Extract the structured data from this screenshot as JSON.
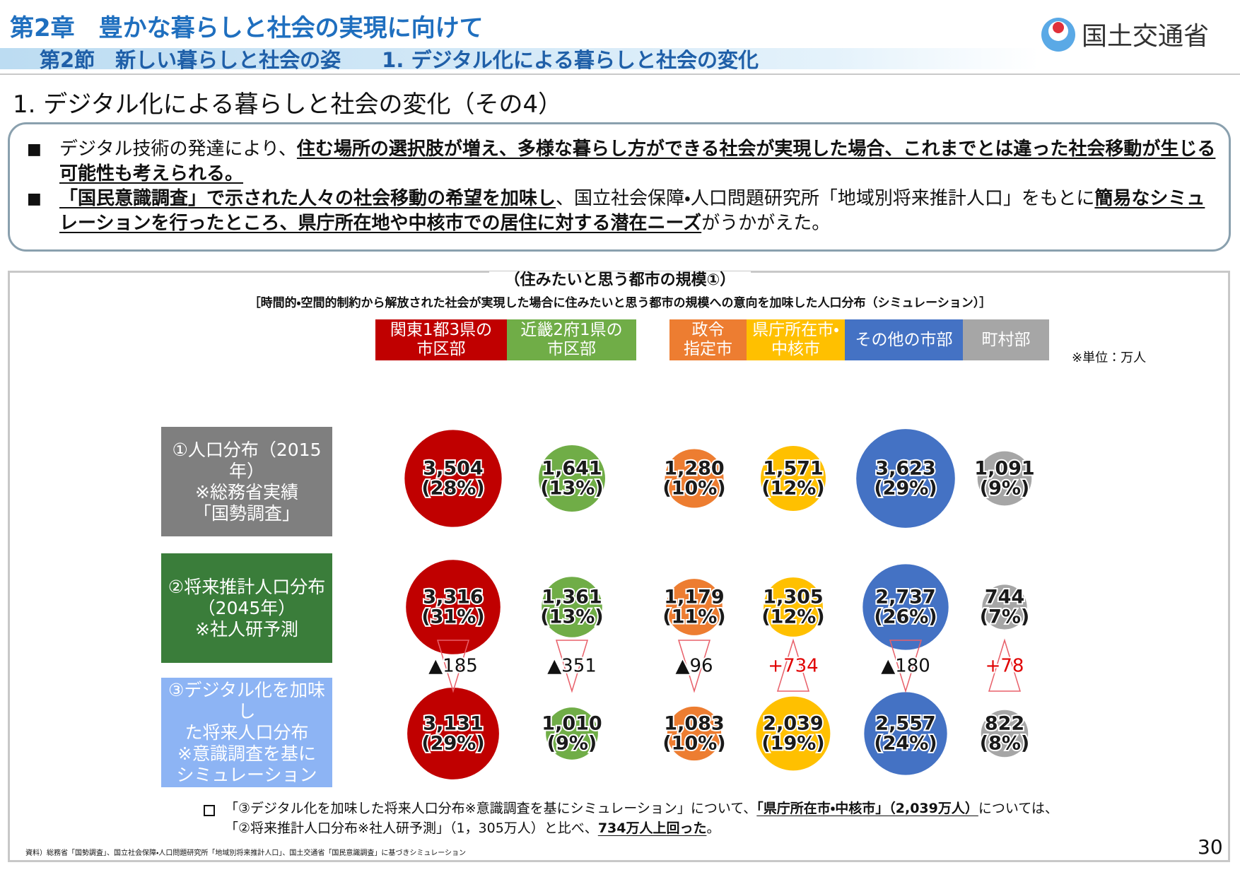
{
  "header": {
    "title": "第2章　豊かな暮らしと社会の実現に向けて",
    "subtitle": "第2節　新しい暮らしと社会の姿　　1. デジタル化による暮らしと社会の変化",
    "logo": "国土交通省",
    "heading": "1. デジタル化による暮らしと社会の変化（その4）"
  },
  "box": {
    "bullets": [
      [
        {
          "text": "デジタル技術の発達により、",
          "emphasis": false
        },
        {
          "text": "住む場所の選択肢が増え、多様な暮らし方ができる社会が実現した場合、これまでとは違った社会移動が生じる可能性も考えられる。",
          "emphasis": true
        }
      ],
      [
        {
          "text": "「国民意識調査」で示された人々の社会移動の希望を加味し",
          "emphasis": true
        },
        {
          "text": "、国立社会保障・人口問題研究所「地域別将来推計人口」をもとに",
          "emphasis": false
        },
        {
          "text": "簡易なシミュレーションを行ったところ、県庁所在地や中核市での居住に対する潜在ニーズ",
          "emphasis": true
        },
        {
          "text": "がうかがえた。",
          "emphasis": false
        }
      ]
    ]
  },
  "chart_data": {
    "type": "bubble",
    "title": "（住みたいと思う都市の規模①）",
    "subtitle": "［時間的・空間的制約から解放された社会が実現した場合に住みたいと思う都市の規模への意向を加味した人口分布（シミュレーション）］",
    "unit_note": "※単位：万人",
    "categories": [
      "関東1都3県の\n市区部",
      "近畿2府1県の\n市区部",
      "政令\n指定市",
      "県庁所在市・\n中核市",
      "その他の市部",
      "町村部"
    ],
    "category_colors": [
      "#c00000",
      "#70ad47",
      "#ed7d31",
      "#ffc000",
      "#4472c4",
      "#a6a6a6"
    ],
    "series": [
      {
        "name": "①人口分布（2015年）\n※総務省実績\n「国勢調査」",
        "color": "#7f7f7f",
        "values": [
          3504,
          1641,
          1280,
          1571,
          3623,
          1091
        ],
        "value_labels": [
          "3,504",
          "1,641",
          "1,280",
          "1,571",
          "3,623",
          "1,091"
        ],
        "shares": [
          28,
          13,
          10,
          12,
          29,
          9
        ],
        "share_labels": [
          "(28%)",
          "(13%)",
          "(10%)",
          "(12%)",
          "(29%)",
          "(9%)"
        ]
      },
      {
        "name": "②将来推計人口分布\n（2045年）\n※社人研予測",
        "color": "#3a7d3a",
        "values": [
          3316,
          1361,
          1179,
          1305,
          2737,
          744
        ],
        "value_labels": [
          "3,316",
          "1,361",
          "1,179",
          "1,305",
          "2,737",
          "744"
        ],
        "shares": [
          31,
          13,
          11,
          12,
          26,
          7
        ],
        "share_labels": [
          "(31%)",
          "(13%)",
          "(11%)",
          "(12%)",
          "(26%)",
          "(7%)"
        ]
      },
      {
        "name": "③デジタル化を加味し\nた将来人口分布\n※意識調査を基に\nシミュレーション",
        "color": "#8db4f4",
        "values": [
          3131,
          1010,
          1083,
          2039,
          2557,
          822
        ],
        "value_labels": [
          "3,131",
          "1,010",
          "1,083",
          "2,039",
          "2,557",
          "822"
        ],
        "shares": [
          29,
          9,
          10,
          19,
          24,
          8
        ],
        "share_labels": [
          "(29%)",
          "(9%)",
          "(10%)",
          "(19%)",
          "(24%)",
          "(8%)"
        ]
      }
    ],
    "changes": {
      "values": [
        -185,
        -351,
        -96,
        734,
        -180,
        78
      ],
      "value_labels": [
        "▲185",
        "▲351",
        "▲96",
        "+734",
        "▲180",
        "+78"
      ]
    },
    "footnote": [
      {
        "text": "「③デジタル化を加味した将来人口分布※意識調査を基にシミュレーション」について、",
        "emphasis": false
      },
      {
        "text": "「県庁所在市・中核市」（2,039万人）",
        "emphasis": true
      },
      {
        "text": "については、「②将来推計人口分布※社人研予測」（1，305万人）と比べ、",
        "emphasis": false
      },
      {
        "text": "734万人上回った",
        "emphasis": true
      },
      {
        "text": "。",
        "emphasis": false
      }
    ],
    "source": "資料）総務省「国勢調査」、国立社会保障・人口問題研究所「地域別将来推計人口」、国土交通省「国民意識調査」に基づきシミュレーション",
    "page_number": "30"
  }
}
